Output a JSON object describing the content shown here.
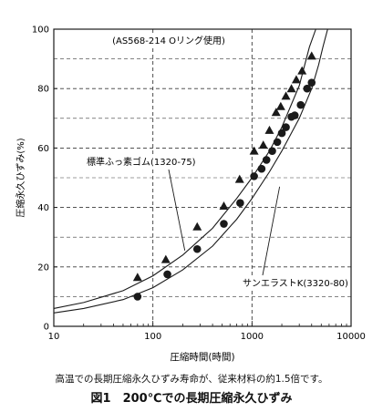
{
  "chart_data": {
    "type": "scatter",
    "xscale": "log",
    "xlim": [
      10,
      10000
    ],
    "ylim": [
      0,
      100
    ],
    "xticks": [
      "10",
      "100",
      "1000",
      "10000"
    ],
    "yticks": [
      "0",
      "20",
      "40",
      "60",
      "80",
      "100"
    ],
    "xlabel": "圧縮時間(時間)",
    "ylabel": "圧縮永久ひずみ(%)",
    "annotation": "(AS568-214 Oリング使用)",
    "grid": "dashed horizontal and vertical at major ticks",
    "series": [
      {
        "name": "標準ふっ素ゴム(1320-75)",
        "marker": "triangle",
        "points": [
          [
            70,
            16.5
          ],
          [
            135,
            22.5
          ],
          [
            280,
            33.5
          ],
          [
            520,
            40.5
          ],
          [
            750,
            49.5
          ],
          [
            1050,
            59
          ],
          [
            1300,
            61
          ],
          [
            1500,
            66
          ],
          [
            1750,
            72
          ],
          [
            1950,
            74
          ],
          [
            2200,
            77.5
          ],
          [
            2500,
            80
          ],
          [
            2800,
            83
          ],
          [
            3200,
            86
          ],
          [
            4000,
            91
          ]
        ],
        "curve": [
          [
            10,
            6
          ],
          [
            20,
            8
          ],
          [
            50,
            12
          ],
          [
            100,
            17
          ],
          [
            200,
            24
          ],
          [
            400,
            33
          ],
          [
            700,
            43
          ],
          [
            1000,
            50
          ],
          [
            1500,
            59
          ],
          [
            2000,
            67
          ],
          [
            3000,
            81
          ],
          [
            3800,
            94
          ],
          [
            4400,
            100
          ]
        ]
      },
      {
        "name": "サンエラストK(3320-80)",
        "marker": "circle",
        "points": [
          [
            70,
            10
          ],
          [
            140,
            17.5
          ],
          [
            280,
            26
          ],
          [
            520,
            34.5
          ],
          [
            760,
            41.5
          ],
          [
            1050,
            50.5
          ],
          [
            1250,
            53
          ],
          [
            1400,
            56
          ],
          [
            1600,
            59
          ],
          [
            1800,
            62
          ],
          [
            2000,
            65
          ],
          [
            2200,
            67
          ],
          [
            2500,
            70.5
          ],
          [
            2700,
            71
          ],
          [
            3100,
            74.5
          ],
          [
            3600,
            80
          ],
          [
            4000,
            82
          ]
        ],
        "curve": [
          [
            10,
            4.5
          ],
          [
            20,
            6
          ],
          [
            50,
            9
          ],
          [
            100,
            13
          ],
          [
            200,
            19
          ],
          [
            400,
            27
          ],
          [
            700,
            36
          ],
          [
            1000,
            43
          ],
          [
            1500,
            52
          ],
          [
            2000,
            59
          ],
          [
            3000,
            70
          ],
          [
            4000,
            80
          ],
          [
            4700,
            88
          ],
          [
            5200,
            94
          ],
          [
            5800,
            100
          ]
        ]
      }
    ],
    "callouts": [
      {
        "text": "標準ふっ素ゴム(1320-75)",
        "target": [
          210,
          25.5
        ]
      },
      {
        "text": "サンエラストK(3320-80)",
        "target": [
          1900,
          47
        ]
      }
    ]
  },
  "caption": {
    "note": "高温での長期圧縮永久ひずみ寿命が、従来材料の約1.5倍です。",
    "figure": "図1　200℃での長期圧縮永久ひずみ"
  },
  "colors": {
    "ink": "#1a1a1a",
    "grid": "#3a3a3a"
  }
}
